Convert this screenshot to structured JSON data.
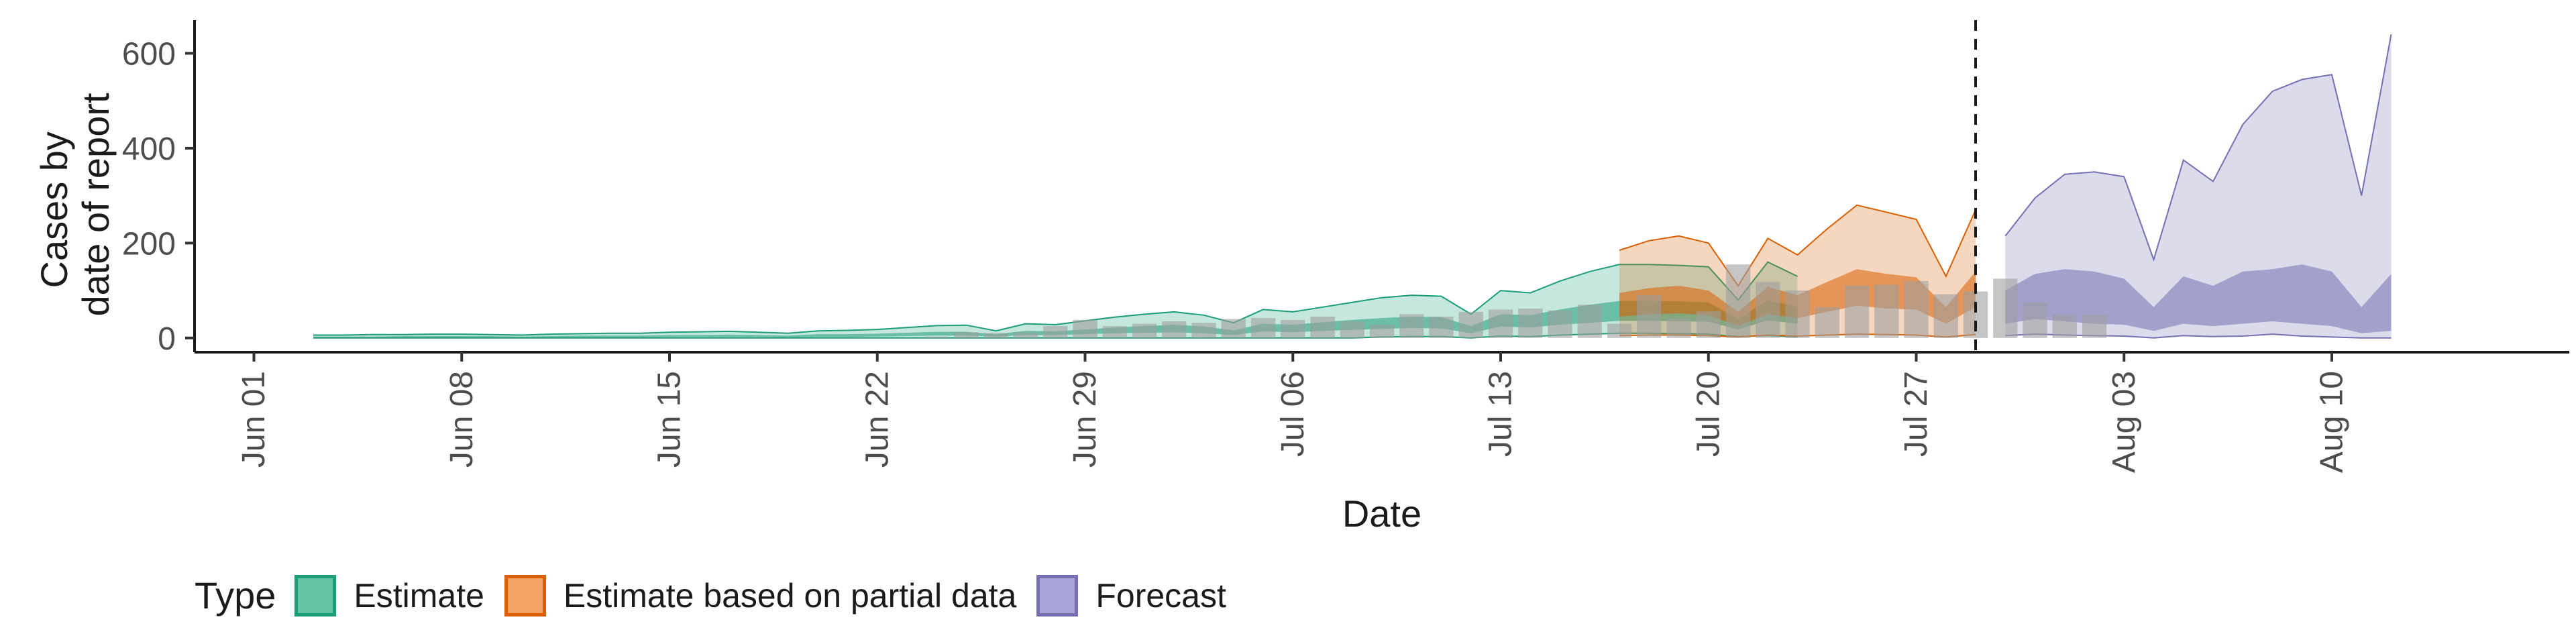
{
  "chart_data": {
    "type": "area",
    "xlabel": "Date",
    "ylabel": [
      "Cases by",
      "date of report"
    ],
    "x_ticks": [
      "Jun 01",
      "Jun 08",
      "Jun 15",
      "Jun 22",
      "Jun 29",
      "Jul 06",
      "Jul 13",
      "Jul 20",
      "Jul 27",
      "Aug 03",
      "Aug 10"
    ],
    "y_ticks": [
      0,
      200,
      400,
      600
    ],
    "ylim": [
      -30,
      670
    ],
    "xlim": [
      "2020-05-30",
      "2020-08-18"
    ],
    "forecast_start": "2020-07-29",
    "grid": false,
    "legend_position": "bottom",
    "legend": {
      "title": "Type",
      "items": [
        {
          "label": "Estimate",
          "fill": "#66c2a5",
          "stroke": "#1b9e77"
        },
        {
          "label": "Estimate based on partial data",
          "fill": "#f4a261",
          "stroke": "#d95f02"
        },
        {
          "label": "Forecast",
          "fill": "#a6a3d6",
          "stroke": "#7570b3"
        }
      ]
    },
    "colors": {
      "estimate": "#1b9e77",
      "partial": "#d95f02",
      "forecast": "#7570b3",
      "reported": "#9e9e9e"
    },
    "series": [
      {
        "name": "Estimate",
        "start": "2020-06-03",
        "outer_upper": [
          6,
          6,
          7,
          7,
          8,
          8,
          7,
          6,
          8,
          9,
          10,
          10,
          12,
          13,
          14,
          12,
          10,
          15,
          16,
          18,
          22,
          26,
          27,
          15,
          30,
          28,
          36,
          44,
          50,
          55,
          48,
          32,
          60,
          55,
          65,
          75,
          85,
          90,
          88,
          50,
          100,
          95,
          120,
          140,
          155,
          155,
          153,
          150,
          80,
          160,
          130
        ],
        "inner_upper": [
          3,
          3,
          3,
          4,
          4,
          4,
          4,
          3,
          4,
          5,
          5,
          5,
          6,
          6,
          7,
          6,
          5,
          8,
          8,
          9,
          11,
          13,
          13,
          8,
          15,
          14,
          18,
          22,
          25,
          28,
          24,
          16,
          30,
          28,
          33,
          38,
          42,
          45,
          44,
          25,
          50,
          48,
          60,
          70,
          78,
          78,
          77,
          75,
          40,
          80,
          65
        ],
        "inner_lower": [
          0,
          0,
          0,
          1,
          1,
          1,
          1,
          0,
          1,
          1,
          1,
          1,
          2,
          2,
          2,
          2,
          1,
          2,
          2,
          3,
          4,
          5,
          5,
          3,
          6,
          6,
          8,
          10,
          11,
          12,
          10,
          6,
          14,
          12,
          15,
          17,
          19,
          21,
          20,
          10,
          24,
          22,
          28,
          32,
          36,
          36,
          35,
          34,
          18,
          37,
          30
        ],
        "outer_lower": [
          0,
          0,
          0,
          0,
          0,
          0,
          0,
          0,
          0,
          0,
          0,
          0,
          0,
          0,
          0,
          0,
          0,
          0,
          0,
          0,
          0,
          0,
          0,
          0,
          0,
          0,
          0,
          0,
          0,
          0,
          0,
          0,
          0,
          0,
          0,
          0,
          2,
          3,
          3,
          0,
          4,
          3,
          6,
          8,
          10,
          10,
          9,
          8,
          3,
          5,
          2
        ]
      },
      {
        "name": "Estimate based on partial data",
        "start": "2020-07-17",
        "outer_upper": [
          185,
          205,
          215,
          200,
          110,
          210,
          175,
          230,
          280,
          265,
          250,
          130,
          270
        ],
        "inner_upper": [
          95,
          105,
          110,
          100,
          55,
          108,
          90,
          118,
          145,
          135,
          128,
          65,
          140
        ],
        "inner_lower": [
          45,
          50,
          52,
          48,
          25,
          50,
          42,
          55,
          68,
          62,
          60,
          30,
          65
        ],
        "outer_lower": [
          5,
          6,
          6,
          5,
          2,
          6,
          4,
          6,
          8,
          7,
          6,
          2,
          7
        ]
      },
      {
        "name": "Forecast",
        "start": "2020-07-30",
        "outer_upper": [
          215,
          295,
          345,
          350,
          340,
          165,
          375,
          330,
          450,
          520,
          545,
          555,
          300,
          640
        ],
        "inner_upper": [
          100,
          135,
          145,
          140,
          125,
          65,
          130,
          110,
          140,
          145,
          155,
          140,
          65,
          135
        ],
        "inner_lower": [
          30,
          40,
          35,
          30,
          28,
          15,
          30,
          25,
          30,
          35,
          30,
          25,
          10,
          15
        ],
        "outer_lower": [
          5,
          8,
          6,
          5,
          4,
          0,
          5,
          3,
          4,
          8,
          4,
          2,
          0,
          0
        ]
      }
    ],
    "reported": {
      "start": "2020-06-24",
      "values": [
        3,
        12,
        10,
        12,
        25,
        38,
        25,
        30,
        35,
        32,
        40,
        42,
        38,
        45,
        35,
        28,
        50,
        45,
        55,
        60,
        62,
        58,
        70,
        30,
        90,
        42,
        56,
        155,
        118,
        100,
        65,
        110,
        112,
        120,
        92,
        98,
        125,
        75,
        50,
        48
      ]
    }
  }
}
